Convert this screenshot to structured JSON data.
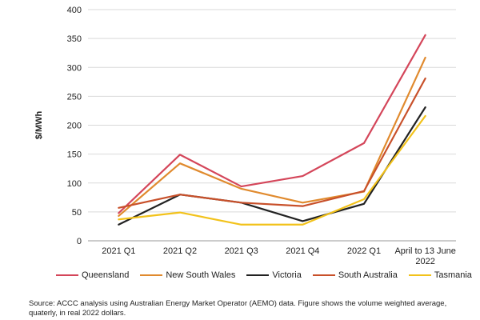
{
  "chart_data": {
    "type": "line",
    "title": "",
    "xlabel": "",
    "ylabel": "$/MWh",
    "ylim": [
      0,
      400
    ],
    "yticks": [
      0,
      50,
      100,
      150,
      200,
      250,
      300,
      350,
      400
    ],
    "ytick_labels": [
      "0",
      "50",
      "100",
      "150",
      "200",
      "250",
      "300",
      "350",
      "400"
    ],
    "grid": "horizontal",
    "legend_position": "bottom",
    "categories": [
      "2021 Q1",
      "2021 Q2",
      "2021 Q3",
      "2021 Q4",
      "2022 Q1",
      "April to 13 June 2022"
    ],
    "category_lines": [
      [
        "2021 Q1"
      ],
      [
        "2021 Q2"
      ],
      [
        "2021 Q3"
      ],
      [
        "2021 Q4"
      ],
      [
        "2022 Q1"
      ],
      [
        "April to 13 June",
        "2022"
      ]
    ],
    "series": [
      {
        "name": "Queensland",
        "color": "#d4465a",
        "values": [
          48,
          149,
          94,
          112,
          169,
          356
        ]
      },
      {
        "name": "New South Wales",
        "color": "#e08a2e",
        "values": [
          43,
          134,
          90,
          66,
          85,
          317
        ]
      },
      {
        "name": "Victoria",
        "color": "#222222",
        "values": [
          28,
          80,
          66,
          34,
          64,
          231
        ]
      },
      {
        "name": "South Australia",
        "color": "#c8502a",
        "values": [
          57,
          80,
          66,
          60,
          86,
          281
        ]
      },
      {
        "name": "Tasmania",
        "color": "#f2c21b",
        "values": [
          37,
          49,
          28,
          28,
          72,
          216
        ]
      }
    ]
  },
  "source_note": "Source:  ACCC analysis using Australian Energy Market Operator (AEMO) data. Figure shows the volume weighted average, quaterly, in real 2022 dollars."
}
